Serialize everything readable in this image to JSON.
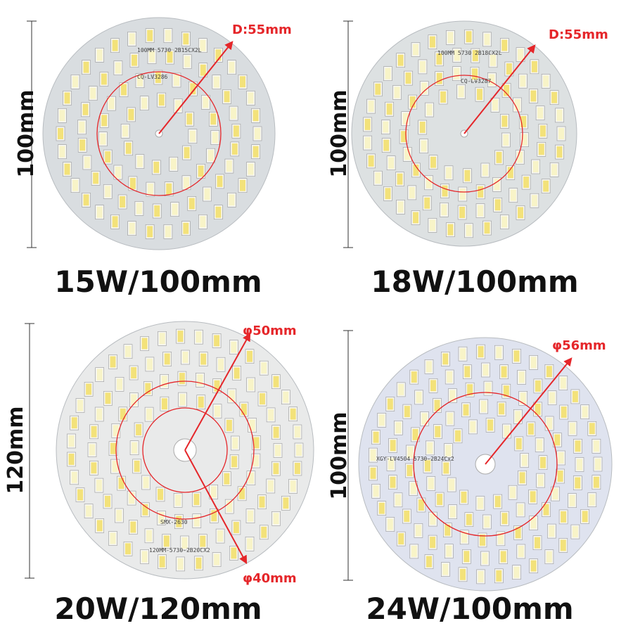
{
  "panels": [
    {
      "caption": "15W/100mm",
      "dimension": "100mm",
      "diameter_labels": [
        "D:55mm"
      ],
      "board_text": [
        "100MM 5730 2B15CX2L",
        "CQ-LV3286"
      ]
    },
    {
      "caption": "18W/100mm",
      "dimension": "100mm",
      "diameter_labels": [
        "D:55mm"
      ],
      "board_text": [
        "100MM 5730 2B18CX2L",
        "CQ-LV3287"
      ]
    },
    {
      "caption": "20W/120mm",
      "dimension": "120mm",
      "diameter_labels": [
        "φ50mm",
        "φ40mm"
      ],
      "board_text": [
        "SMX-2630",
        "120MM-5730-2B20CX2"
      ]
    },
    {
      "caption": "24W/100mm",
      "dimension": "100mm",
      "diameter_labels": [
        "φ56mm"
      ],
      "board_text": [
        "XGY-LV4504 5730-2B24Cx2"
      ]
    }
  ]
}
